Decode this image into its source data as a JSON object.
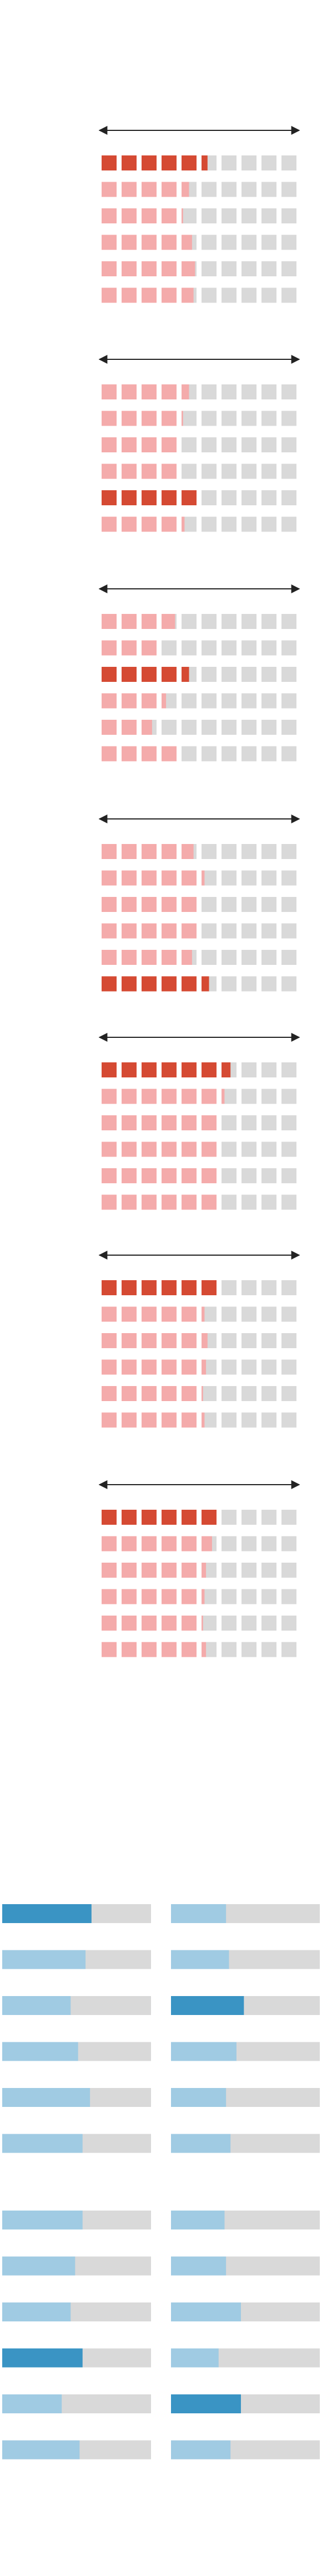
{
  "colors": {
    "highlight_red": "#d54a33",
    "light_red": "#f4abab",
    "empty_gray": "#d9d9d9",
    "arrow": "#222222",
    "highlight_blue": "#3a94c4",
    "light_blue": "#a0cbe3",
    "bar_track": "#d9d9d9"
  },
  "chart_data": [
    {
      "type": "waffle",
      "scale_max": 10,
      "units_per_row": 10,
      "groups": [
        {
          "rows": [
            5.4,
            4.5,
            4.1,
            4.7,
            4.9,
            4.8
          ],
          "highlight_row": 0
        },
        {
          "rows": [
            4.5,
            4.1,
            4.0,
            4.0,
            5.0,
            4.2
          ],
          "highlight_row": 4
        },
        {
          "rows": [
            3.9,
            3.0,
            4.5,
            3.3,
            2.7,
            4.0
          ],
          "highlight_row": 2
        },
        {
          "rows": [
            4.8,
            5.2,
            5.0,
            5.0,
            4.7,
            5.5
          ],
          "highlight_row": 5
        },
        {
          "rows": [
            6.6,
            6.2,
            6.0,
            6.0,
            6.0,
            6.0
          ],
          "highlight_row": 0
        },
        {
          "rows": [
            6.0,
            5.2,
            5.4,
            5.3,
            5.1,
            5.2
          ],
          "highlight_row": 0
        },
        {
          "rows": [
            6.0,
            5.7,
            5.3,
            5.2,
            5.1,
            5.3
          ],
          "highlight_row": 0
        }
      ]
    },
    {
      "type": "bar",
      "orientation": "horizontal",
      "xlim": [
        0,
        1
      ],
      "panels": [
        {
          "column": 0,
          "block": 0,
          "values": [
            0.6,
            0.56,
            0.46,
            0.51,
            0.59,
            0.54
          ],
          "highlight_index": 0
        },
        {
          "column": 1,
          "block": 0,
          "values": [
            0.37,
            0.39,
            0.49,
            0.44,
            0.37,
            0.4
          ],
          "highlight_index": 2
        },
        {
          "column": 0,
          "block": 1,
          "values": [
            0.54,
            0.49,
            0.46,
            0.54,
            0.4,
            0.52
          ],
          "highlight_index": 3
        },
        {
          "column": 1,
          "block": 1,
          "values": [
            0.36,
            0.37,
            0.47,
            0.32,
            0.47,
            0.4
          ],
          "highlight_index": 4
        }
      ]
    }
  ]
}
